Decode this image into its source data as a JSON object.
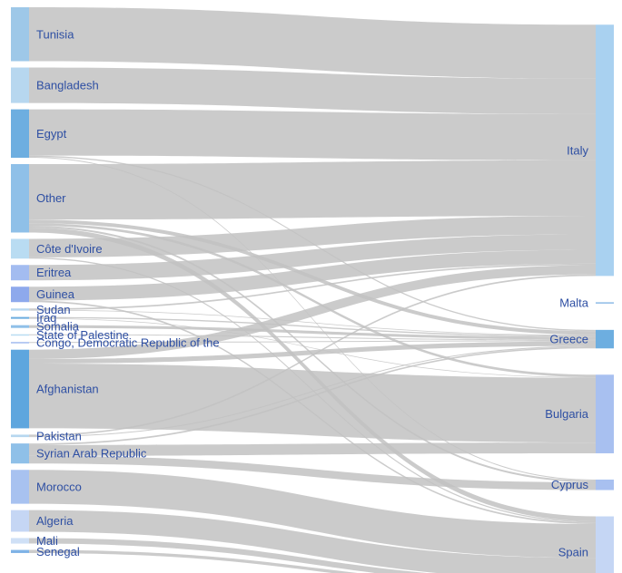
{
  "chart_data": {
    "type": "sankey",
    "title": "",
    "sources": [
      {
        "name": "Tunisia",
        "color": "#9ec8e8"
      },
      {
        "name": "Bangladesh",
        "color": "#b7d7ef"
      },
      {
        "name": "Egypt",
        "color": "#6daee0"
      },
      {
        "name": "Other",
        "color": "#8fc0e8"
      },
      {
        "name": "Côte d'Ivoire",
        "color": "#b9dcf2"
      },
      {
        "name": "Eritrea",
        "color": "#a3bcf0"
      },
      {
        "name": "Guinea",
        "color": "#8ea9ec"
      },
      {
        "name": "Sudan",
        "color": "#b7d7ef"
      },
      {
        "name": "Iraq",
        "color": "#6daee0"
      },
      {
        "name": "Somalia",
        "color": "#8fc0e8"
      },
      {
        "name": "State of Palestine",
        "color": "#b9dcf2"
      },
      {
        "name": "Congo, Democratic Republic of the",
        "color": "#a3bcf0"
      },
      {
        "name": "Afghanistan",
        "color": "#5ea6de"
      },
      {
        "name": "Pakistan",
        "color": "#b7d7ef"
      },
      {
        "name": "Syrian Arab Republic",
        "color": "#8fc0e8"
      },
      {
        "name": "Morocco",
        "color": "#a8c2f0"
      },
      {
        "name": "Algeria",
        "color": "#c5d6f4"
      },
      {
        "name": "Mali",
        "color": "#cfe0f6"
      },
      {
        "name": "Senegal",
        "color": "#7fb3e6"
      }
    ],
    "targets": [
      {
        "name": "Italy",
        "color": "#a9d1f0"
      },
      {
        "name": "Malta",
        "color": "#8cbbe6"
      },
      {
        "name": "Greece",
        "color": "#6daee0"
      },
      {
        "name": "Bulgaria",
        "color": "#a8c0f0"
      },
      {
        "name": "Cyprus",
        "color": "#a8c0f0"
      },
      {
        "name": "Spain",
        "color": "#c5d6f4"
      }
    ],
    "links": [
      {
        "source": "Tunisia",
        "target": "Italy",
        "value": 17.5
      },
      {
        "source": "Bangladesh",
        "target": "Italy",
        "value": 11.5
      },
      {
        "source": "Egypt",
        "target": "Italy",
        "value": 15
      },
      {
        "source": "Egypt",
        "target": "Greece",
        "value": 0.4
      },
      {
        "source": "Egypt",
        "target": "Cyprus",
        "value": 0.3
      },
      {
        "source": "Other",
        "target": "Italy",
        "value": 18
      },
      {
        "source": "Other",
        "target": "Greece",
        "value": 1.2
      },
      {
        "source": "Other",
        "target": "Bulgaria",
        "value": 0.8
      },
      {
        "source": "Other",
        "target": "Cyprus",
        "value": 0.6
      },
      {
        "source": "Other",
        "target": "Spain",
        "value": 1.6
      },
      {
        "source": "Côte d'Ivoire",
        "target": "Italy",
        "value": 6
      },
      {
        "source": "Côte d'Ivoire",
        "target": "Spain",
        "value": 0.4
      },
      {
        "source": "Eritrea",
        "target": "Italy",
        "value": 5
      },
      {
        "source": "Guinea",
        "target": "Italy",
        "value": 4.5
      },
      {
        "source": "Guinea",
        "target": "Spain",
        "value": 0.5
      },
      {
        "source": "Sudan",
        "target": "Italy",
        "value": 0.5
      },
      {
        "source": "Sudan",
        "target": "Greece",
        "value": 0.2
      },
      {
        "source": "Iraq",
        "target": "Greece",
        "value": 0.4
      },
      {
        "source": "Iraq",
        "target": "Bulgaria",
        "value": 0.2
      },
      {
        "source": "Somalia",
        "target": "Greece",
        "value": 0.9
      },
      {
        "source": "State of Palestine",
        "target": "Greece",
        "value": 0.3
      },
      {
        "source": "Congo, Democratic Republic of the",
        "target": "Greece",
        "value": 0.3
      },
      {
        "source": "Afghanistan",
        "target": "Italy",
        "value": 3
      },
      {
        "source": "Afghanistan",
        "target": "Greece",
        "value": 1.5
      },
      {
        "source": "Afghanistan",
        "target": "Bulgaria",
        "value": 21
      },
      {
        "source": "Pakistan",
        "target": "Italy",
        "value": 0.5
      },
      {
        "source": "Pakistan",
        "target": "Greece",
        "value": 0.3
      },
      {
        "source": "Syrian Arab Republic",
        "target": "Greece",
        "value": 0.5
      },
      {
        "source": "Syrian Arab Republic",
        "target": "Bulgaria",
        "value": 3.5
      },
      {
        "source": "Syrian Arab Republic",
        "target": "Cyprus",
        "value": 2.5
      },
      {
        "source": "Morocco",
        "target": "Spain",
        "value": 11
      },
      {
        "source": "Algeria",
        "target": "Spain",
        "value": 7
      },
      {
        "source": "Mali",
        "target": "Spain",
        "value": 1.8
      },
      {
        "source": "Senegal",
        "target": "Spain",
        "value": 1
      }
    ]
  }
}
